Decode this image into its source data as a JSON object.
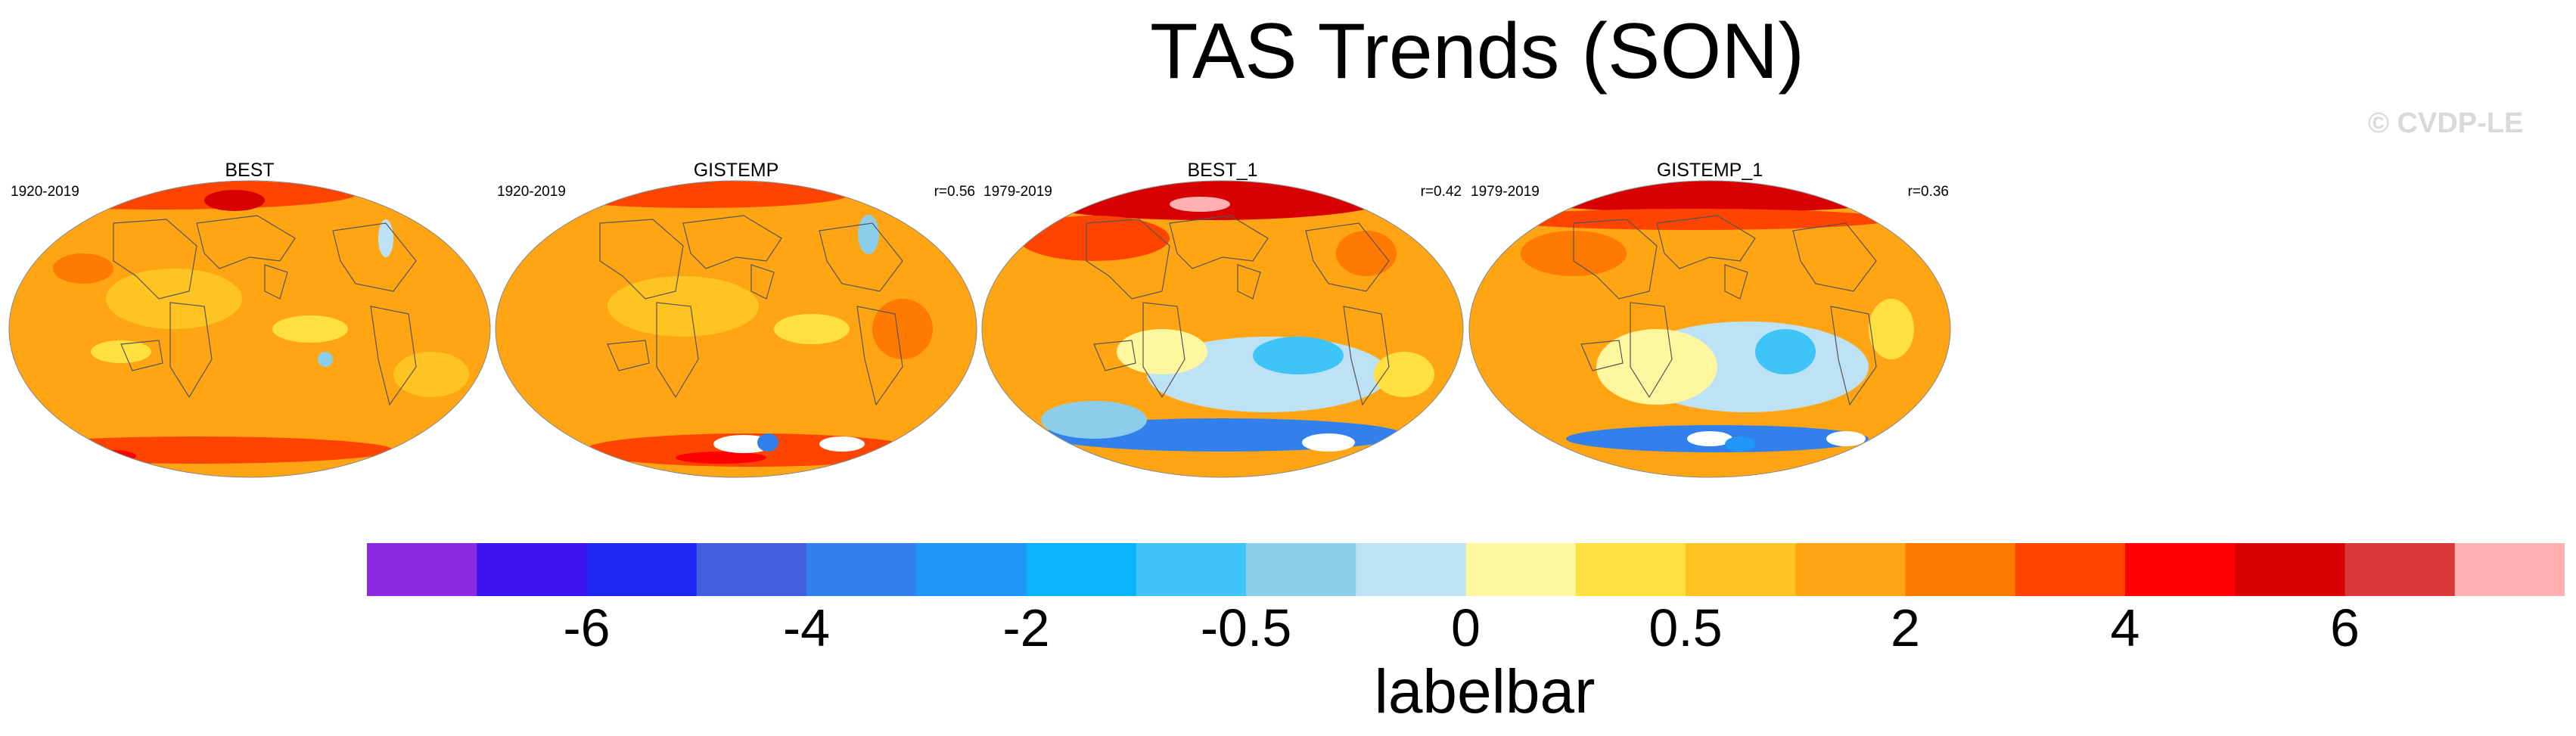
{
  "title": "TAS Trends (SON)",
  "credit": "© CVDP-LE",
  "panels": [
    {
      "name": "BEST",
      "period": "1920-2019",
      "corr": ""
    },
    {
      "name": "GISTEMP",
      "period": "1920-2019",
      "corr": "r=0.56"
    },
    {
      "name": "BEST_1",
      "period": "1979-2019",
      "corr": "r=0.42"
    },
    {
      "name": "GISTEMP_1",
      "period": "1979-2019",
      "corr": "r=0.36"
    }
  ],
  "colorbar": {
    "title": "labelbar",
    "colors": [
      "#8a2be2",
      "#3c14f0",
      "#1e28f0",
      "#4060e0",
      "#3280ec",
      "#1e96fa",
      "#0ab4fa",
      "#3ec4f6",
      "#8ccdec",
      "#bde2f5",
      "#fff7a0",
      "#ffe040",
      "#ffc422",
      "#ffa514",
      "#ff7a00",
      "#ff4400",
      "#ff0000",
      "#d80000",
      "#d83838",
      "#ffb0b0"
    ],
    "labels": [
      {
        "text": "-6",
        "boundary": 2
      },
      {
        "text": "-4",
        "boundary": 4
      },
      {
        "text": "-2",
        "boundary": 6
      },
      {
        "text": "-0.5",
        "boundary": 8
      },
      {
        "text": "0",
        "boundary": 10
      },
      {
        "text": "0.5",
        "boundary": 12
      },
      {
        "text": "2",
        "boundary": 14
      },
      {
        "text": "4",
        "boundary": 16
      },
      {
        "text": "6",
        "boundary": 18
      }
    ]
  }
}
